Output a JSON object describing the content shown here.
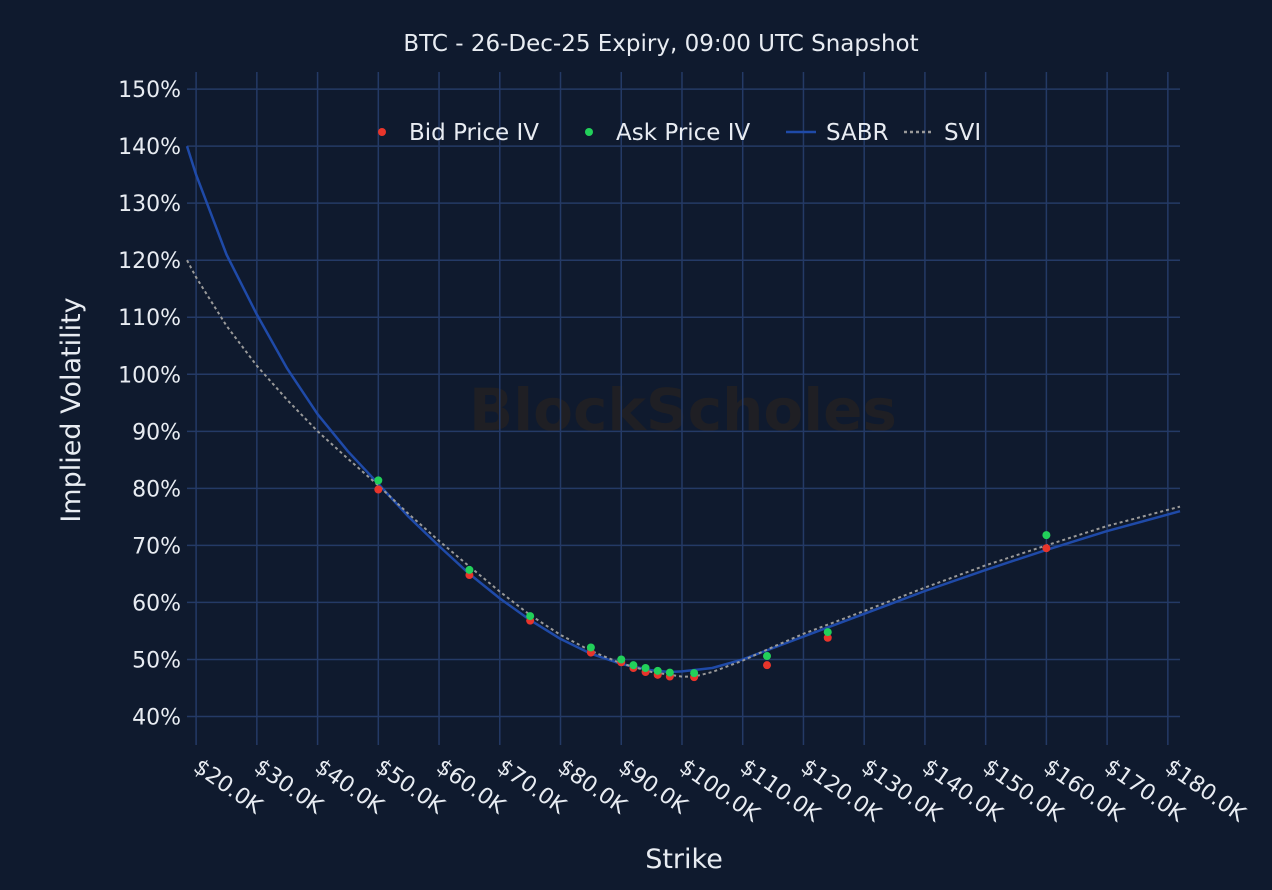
{
  "colors": {
    "background": "#0f1a2e",
    "grid": "#243a66",
    "text": "#e8ecf2",
    "bid": "#e8352b",
    "ask": "#22d05a",
    "sabr": "#1f4aa8",
    "svi": "#9a9a9a",
    "watermark": "#1f1f24"
  },
  "watermark": "BlockScholes",
  "chart_data": {
    "type": "scatter",
    "title": "BTC - 26-Dec-25 Expiry, 09:00 UTC Snapshot",
    "xlabel": "Strike",
    "ylabel": "Implied Volatility",
    "xlim": [
      18500,
      182000
    ],
    "ylim": [
      35,
      153
    ],
    "x_ticks": [
      20000,
      30000,
      40000,
      50000,
      60000,
      70000,
      80000,
      90000,
      100000,
      110000,
      120000,
      130000,
      140000,
      150000,
      160000,
      170000,
      180000
    ],
    "x_tick_labels": [
      "$20.0K",
      "$30.0K",
      "$40.0K",
      "$50.0K",
      "$60.0K",
      "$70.0K",
      "$80.0K",
      "$90.0K",
      "$100.0K",
      "$110.0K",
      "$120.0K",
      "$130.0K",
      "$140.0K",
      "$150.0K",
      "$160.0K",
      "$170.0K",
      "$180.0K"
    ],
    "y_ticks": [
      40,
      50,
      60,
      70,
      80,
      90,
      100,
      110,
      120,
      130,
      140,
      150
    ],
    "y_tick_labels": [
      "40%",
      "50%",
      "60%",
      "70%",
      "80%",
      "90%",
      "100%",
      "110%",
      "120%",
      "130%",
      "140%",
      "150%"
    ],
    "grid": true,
    "legend_position": "top-center",
    "series": [
      {
        "name": "Bid Price IV",
        "type": "scatter",
        "color": "#e8352b",
        "points": [
          [
            50000,
            79.8
          ],
          [
            65000,
            64.8
          ],
          [
            75000,
            56.8
          ],
          [
            85000,
            51.2
          ],
          [
            90000,
            49.5
          ],
          [
            92000,
            48.5
          ],
          [
            94000,
            47.8
          ],
          [
            96000,
            47.3
          ],
          [
            98000,
            47.0
          ],
          [
            102000,
            46.9
          ],
          [
            114000,
            49.0
          ],
          [
            124000,
            53.8
          ],
          [
            160000,
            69.5
          ]
        ]
      },
      {
        "name": "Ask Price IV",
        "type": "scatter",
        "color": "#22d05a",
        "points": [
          [
            50000,
            81.4
          ],
          [
            65000,
            65.7
          ],
          [
            75000,
            57.6
          ],
          [
            85000,
            52.1
          ],
          [
            90000,
            50.0
          ],
          [
            92000,
            49.0
          ],
          [
            94000,
            48.5
          ],
          [
            96000,
            48.0
          ],
          [
            98000,
            47.7
          ],
          [
            102000,
            47.6
          ],
          [
            114000,
            50.6
          ],
          [
            124000,
            54.8
          ],
          [
            160000,
            71.8
          ]
        ]
      },
      {
        "name": "SABR",
        "type": "line",
        "color": "#1f4aa8",
        "points": [
          [
            18500,
            140.0
          ],
          [
            20000,
            135.0
          ],
          [
            25000,
            121.0
          ],
          [
            30000,
            110.5
          ],
          [
            35000,
            101.0
          ],
          [
            40000,
            93.0
          ],
          [
            45000,
            86.5
          ],
          [
            50000,
            80.8
          ],
          [
            55000,
            75.0
          ],
          [
            60000,
            69.9
          ],
          [
            65000,
            65.0
          ],
          [
            70000,
            60.7
          ],
          [
            75000,
            56.9
          ],
          [
            80000,
            53.6
          ],
          [
            85000,
            51.0
          ],
          [
            90000,
            49.2
          ],
          [
            95000,
            48.1
          ],
          [
            98000,
            47.8
          ],
          [
            100000,
            47.9
          ],
          [
            105000,
            48.5
          ],
          [
            110000,
            50.0
          ],
          [
            115000,
            52.0
          ],
          [
            120000,
            54.0
          ],
          [
            130000,
            58.0
          ],
          [
            140000,
            62.0
          ],
          [
            150000,
            65.7
          ],
          [
            160000,
            69.2
          ],
          [
            170000,
            72.5
          ],
          [
            182000,
            76.0
          ]
        ]
      },
      {
        "name": "SVI",
        "type": "line",
        "dashed": true,
        "color": "#9a9a9a",
        "points": [
          [
            18500,
            120.0
          ],
          [
            20000,
            117.0
          ],
          [
            25000,
            108.5
          ],
          [
            30000,
            101.5
          ],
          [
            35000,
            95.5
          ],
          [
            40000,
            90.0
          ],
          [
            45000,
            85.2
          ],
          [
            50000,
            80.5
          ],
          [
            55000,
            75.5
          ],
          [
            60000,
            70.8
          ],
          [
            65000,
            66.3
          ],
          [
            70000,
            61.9
          ],
          [
            75000,
            57.8
          ],
          [
            80000,
            54.3
          ],
          [
            85000,
            51.5
          ],
          [
            90000,
            49.3
          ],
          [
            95000,
            47.8
          ],
          [
            100000,
            47.0
          ],
          [
            102000,
            47.0
          ],
          [
            105000,
            47.8
          ],
          [
            110000,
            49.8
          ],
          [
            115000,
            52.2
          ],
          [
            120000,
            54.5
          ],
          [
            130000,
            58.5
          ],
          [
            140000,
            62.6
          ],
          [
            150000,
            66.5
          ],
          [
            160000,
            70.0
          ],
          [
            170000,
            73.4
          ],
          [
            182000,
            76.8
          ]
        ]
      }
    ]
  }
}
